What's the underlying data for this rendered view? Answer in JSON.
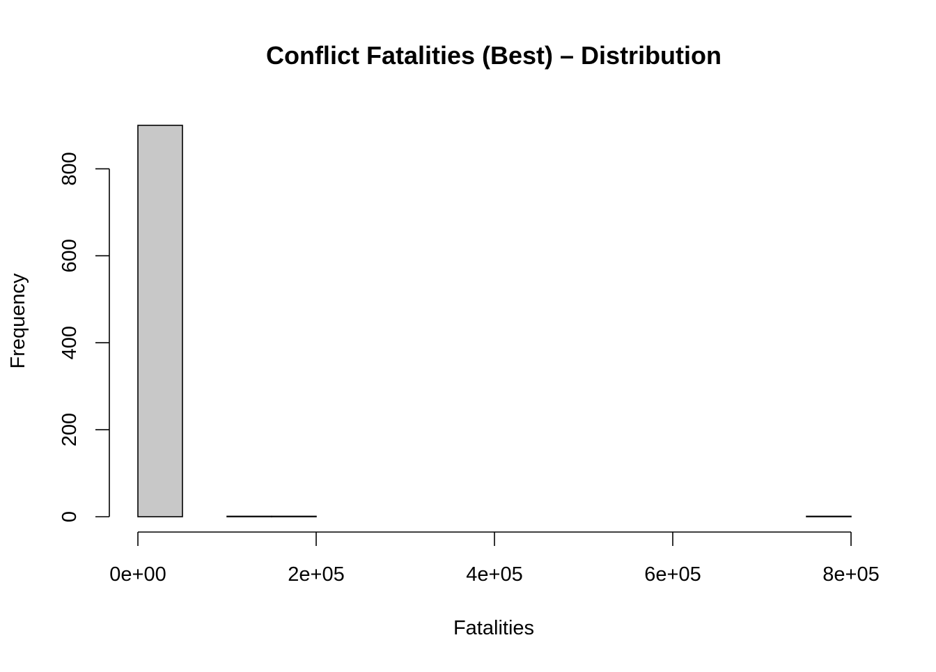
{
  "chart_data": {
    "type": "bar",
    "title": "Conflict Fatalities (Best) – Distribution",
    "xlabel": "Fatalities",
    "ylabel": "Frequency",
    "x_bins": [
      [
        0,
        50000
      ],
      [
        50000,
        100000
      ],
      [
        100000,
        150000
      ],
      [
        150000,
        200000
      ],
      [
        200000,
        250000
      ],
      [
        250000,
        300000
      ],
      [
        300000,
        350000
      ],
      [
        350000,
        400000
      ],
      [
        400000,
        450000
      ],
      [
        450000,
        500000
      ],
      [
        500000,
        550000
      ],
      [
        550000,
        600000
      ],
      [
        600000,
        650000
      ],
      [
        650000,
        700000
      ],
      [
        700000,
        750000
      ],
      [
        750000,
        800000
      ]
    ],
    "values": [
      900,
      0,
      1,
      1,
      0,
      0,
      0,
      0,
      0,
      0,
      0,
      0,
      0,
      0,
      0,
      1
    ],
    "xlim": [
      0,
      800000
    ],
    "ylim": [
      0,
      900
    ],
    "x_ticks": [
      0,
      200000,
      400000,
      600000,
      800000
    ],
    "x_tick_labels": [
      "0e+00",
      "2e+05",
      "4e+05",
      "6e+05",
      "8e+05"
    ],
    "y_ticks": [
      0,
      200,
      400,
      600,
      800
    ],
    "y_tick_labels": [
      "0",
      "200",
      "400",
      "600",
      "800"
    ],
    "grid": false,
    "colors": {
      "bar_fill": "#c8c8c8",
      "bar_stroke": "#000000"
    }
  }
}
